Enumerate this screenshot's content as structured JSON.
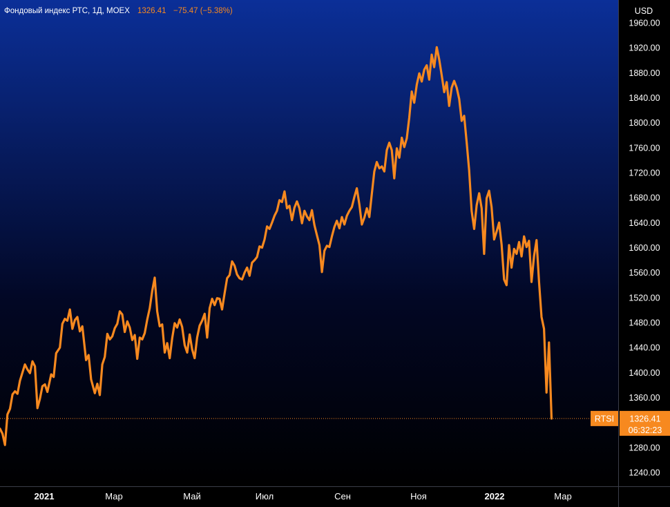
{
  "header": {
    "title": "Фондовый индекс РТС, 1Д, MOEX",
    "last": "1326.41",
    "change": "−75.47 (−5.38%)"
  },
  "currency": "USD",
  "last_price_label": {
    "symbol": "RTSI",
    "price": "1326.41",
    "timer": "06:32:23"
  },
  "colors": {
    "line": "#f7891f",
    "bg_top": "#0b2f98",
    "bg_bottom": "#000000",
    "axis_text": "#ffffff"
  },
  "chart_data": {
    "type": "line",
    "y_ticks": [
      "1960.00",
      "1920.00",
      "1880.00",
      "1840.00",
      "1800.00",
      "1760.00",
      "1720.00",
      "1680.00",
      "1640.00",
      "1600.00",
      "1560.00",
      "1520.00",
      "1480.00",
      "1440.00",
      "1400.00",
      "1360.00",
      "1280.00",
      "1240.00"
    ],
    "x_ticks": [
      {
        "label": "2021",
        "bold": true
      },
      {
        "label": "Мар",
        "bold": false
      },
      {
        "label": "Май",
        "bold": false
      },
      {
        "label": "Июл",
        "bold": false
      },
      {
        "label": "Сен",
        "bold": false
      },
      {
        "label": "Ноя",
        "bold": false
      },
      {
        "label": "2022",
        "bold": true
      },
      {
        "label": "Мар",
        "bold": false
      }
    ],
    "ylim": [
      1222,
      1982
    ],
    "xlim": [
      "2020-12-15",
      "2022-04-25"
    ],
    "series": [
      {
        "values": [
          [
            "2020-12-15",
            1310
          ],
          [
            "2020-12-17",
            1302
          ],
          [
            "2020-12-19",
            1284
          ],
          [
            "2020-12-21",
            1333
          ],
          [
            "2020-12-23",
            1342
          ],
          [
            "2020-12-25",
            1365
          ],
          [
            "2020-12-27",
            1370
          ],
          [
            "2020-12-29",
            1366
          ],
          [
            "2020-12-31",
            1387
          ],
          [
            "2021-01-04",
            1413
          ],
          [
            "2021-01-06",
            1405
          ],
          [
            "2021-01-08",
            1399
          ],
          [
            "2021-01-10",
            1418
          ],
          [
            "2021-01-12",
            1410
          ],
          [
            "2021-01-14",
            1343
          ],
          [
            "2021-01-16",
            1358
          ],
          [
            "2021-01-18",
            1378
          ],
          [
            "2021-01-20",
            1381
          ],
          [
            "2021-01-22",
            1369
          ],
          [
            "2021-01-25",
            1397
          ],
          [
            "2021-01-27",
            1393
          ],
          [
            "2021-01-29",
            1431
          ],
          [
            "2021-02-01",
            1440
          ],
          [
            "2021-02-03",
            1478
          ],
          [
            "2021-02-05",
            1486
          ],
          [
            "2021-02-07",
            1483
          ],
          [
            "2021-02-09",
            1501
          ],
          [
            "2021-02-11",
            1470
          ],
          [
            "2021-02-13",
            1484
          ],
          [
            "2021-02-15",
            1489
          ],
          [
            "2021-02-17",
            1466
          ],
          [
            "2021-02-19",
            1474
          ],
          [
            "2021-02-22",
            1420
          ],
          [
            "2021-02-24",
            1428
          ],
          [
            "2021-02-26",
            1389
          ],
          [
            "2021-03-01",
            1367
          ],
          [
            "2021-03-03",
            1382
          ],
          [
            "2021-03-05",
            1364
          ],
          [
            "2021-03-07",
            1413
          ],
          [
            "2021-03-09",
            1425
          ],
          [
            "2021-03-11",
            1462
          ],
          [
            "2021-03-13",
            1453
          ],
          [
            "2021-03-15",
            1458
          ],
          [
            "2021-03-17",
            1471
          ],
          [
            "2021-03-19",
            1478
          ],
          [
            "2021-03-21",
            1498
          ],
          [
            "2021-03-23",
            1493
          ],
          [
            "2021-03-25",
            1465
          ],
          [
            "2021-03-27",
            1482
          ],
          [
            "2021-03-29",
            1472
          ],
          [
            "2021-03-31",
            1452
          ],
          [
            "2021-04-02",
            1460
          ],
          [
            "2021-04-04",
            1422
          ],
          [
            "2021-04-06",
            1456
          ],
          [
            "2021-04-08",
            1453
          ],
          [
            "2021-04-10",
            1463
          ],
          [
            "2021-04-12",
            1485
          ],
          [
            "2021-04-14",
            1503
          ],
          [
            "2021-04-16",
            1531
          ],
          [
            "2021-04-18",
            1552
          ],
          [
            "2021-04-20",
            1498
          ],
          [
            "2021-04-22",
            1474
          ],
          [
            "2021-04-24",
            1477
          ],
          [
            "2021-04-26",
            1432
          ],
          [
            "2021-04-28",
            1447
          ],
          [
            "2021-04-30",
            1423
          ],
          [
            "2021-05-02",
            1455
          ],
          [
            "2021-05-04",
            1479
          ],
          [
            "2021-05-06",
            1472
          ],
          [
            "2021-05-08",
            1485
          ],
          [
            "2021-05-10",
            1473
          ],
          [
            "2021-05-12",
            1444
          ],
          [
            "2021-05-14",
            1432
          ],
          [
            "2021-05-16",
            1461
          ],
          [
            "2021-05-18",
            1437
          ],
          [
            "2021-05-20",
            1423
          ],
          [
            "2021-05-22",
            1456
          ],
          [
            "2021-05-24",
            1475
          ],
          [
            "2021-05-26",
            1483
          ],
          [
            "2021-05-28",
            1494
          ],
          [
            "2021-05-30",
            1456
          ],
          [
            "2021-06-01",
            1503
          ],
          [
            "2021-06-03",
            1518
          ],
          [
            "2021-06-05",
            1508
          ],
          [
            "2021-06-07",
            1519
          ],
          [
            "2021-06-09",
            1518
          ],
          [
            "2021-06-11",
            1501
          ],
          [
            "2021-06-13",
            1527
          ],
          [
            "2021-06-15",
            1551
          ],
          [
            "2021-06-17",
            1556
          ],
          [
            "2021-06-19",
            1578
          ],
          [
            "2021-06-21",
            1571
          ],
          [
            "2021-06-23",
            1557
          ],
          [
            "2021-06-25",
            1551
          ],
          [
            "2021-06-27",
            1549
          ],
          [
            "2021-06-29",
            1560
          ],
          [
            "2021-07-01",
            1568
          ],
          [
            "2021-07-03",
            1555
          ],
          [
            "2021-07-05",
            1576
          ],
          [
            "2021-07-07",
            1580
          ],
          [
            "2021-07-09",
            1585
          ],
          [
            "2021-07-11",
            1602
          ],
          [
            "2021-07-13",
            1600
          ],
          [
            "2021-07-15",
            1613
          ],
          [
            "2021-07-17",
            1634
          ],
          [
            "2021-07-19",
            1630
          ],
          [
            "2021-07-21",
            1640
          ],
          [
            "2021-07-23",
            1651
          ],
          [
            "2021-07-25",
            1659
          ],
          [
            "2021-07-27",
            1676
          ],
          [
            "2021-07-29",
            1673
          ],
          [
            "2021-07-31",
            1690
          ],
          [
            "2021-08-02",
            1663
          ],
          [
            "2021-08-04",
            1667
          ],
          [
            "2021-08-06",
            1644
          ],
          [
            "2021-08-08",
            1664
          ],
          [
            "2021-08-10",
            1674
          ],
          [
            "2021-08-12",
            1663
          ],
          [
            "2021-08-14",
            1639
          ],
          [
            "2021-08-16",
            1659
          ],
          [
            "2021-08-18",
            1650
          ],
          [
            "2021-08-20",
            1644
          ],
          [
            "2021-08-22",
            1660
          ],
          [
            "2021-08-24",
            1636
          ],
          [
            "2021-08-26",
            1620
          ],
          [
            "2021-08-28",
            1604
          ],
          [
            "2021-08-30",
            1561
          ],
          [
            "2021-09-01",
            1595
          ],
          [
            "2021-09-03",
            1603
          ],
          [
            "2021-09-05",
            1601
          ],
          [
            "2021-09-07",
            1618
          ],
          [
            "2021-09-09",
            1633
          ],
          [
            "2021-09-11",
            1643
          ],
          [
            "2021-09-13",
            1631
          ],
          [
            "2021-09-15",
            1649
          ],
          [
            "2021-09-17",
            1637
          ],
          [
            "2021-09-19",
            1651
          ],
          [
            "2021-09-21",
            1659
          ],
          [
            "2021-09-23",
            1665
          ],
          [
            "2021-09-25",
            1681
          ],
          [
            "2021-09-27",
            1695
          ],
          [
            "2021-09-29",
            1669
          ],
          [
            "2021-10-01",
            1637
          ],
          [
            "2021-10-03",
            1648
          ],
          [
            "2021-10-05",
            1663
          ],
          [
            "2021-10-07",
            1649
          ],
          [
            "2021-10-09",
            1686
          ],
          [
            "2021-10-11",
            1722
          ],
          [
            "2021-10-13",
            1737
          ],
          [
            "2021-10-15",
            1727
          ],
          [
            "2021-10-17",
            1730
          ],
          [
            "2021-10-19",
            1722
          ],
          [
            "2021-10-21",
            1756
          ],
          [
            "2021-10-23",
            1768
          ],
          [
            "2021-10-25",
            1756
          ],
          [
            "2021-10-27",
            1711
          ],
          [
            "2021-10-29",
            1759
          ],
          [
            "2021-10-31",
            1744
          ],
          [
            "2021-11-02",
            1776
          ],
          [
            "2021-11-04",
            1761
          ],
          [
            "2021-11-06",
            1775
          ],
          [
            "2021-11-08",
            1808
          ],
          [
            "2021-11-10",
            1850
          ],
          [
            "2021-11-12",
            1832
          ],
          [
            "2021-11-14",
            1861
          ],
          [
            "2021-11-16",
            1879
          ],
          [
            "2021-11-18",
            1866
          ],
          [
            "2021-11-20",
            1885
          ],
          [
            "2021-11-22",
            1892
          ],
          [
            "2021-11-24",
            1869
          ],
          [
            "2021-11-26",
            1909
          ],
          [
            "2021-11-28",
            1889
          ],
          [
            "2021-11-30",
            1921
          ],
          [
            "2021-12-02",
            1901
          ],
          [
            "2021-12-04",
            1876
          ],
          [
            "2021-12-06",
            1849
          ],
          [
            "2021-12-08",
            1865
          ],
          [
            "2021-12-10",
            1827
          ],
          [
            "2021-12-12",
            1856
          ],
          [
            "2021-12-14",
            1867
          ],
          [
            "2021-12-16",
            1856
          ],
          [
            "2021-12-18",
            1838
          ],
          [
            "2021-12-20",
            1803
          ],
          [
            "2021-12-22",
            1811
          ],
          [
            "2021-12-24",
            1769
          ],
          [
            "2021-12-26",
            1724
          ],
          [
            "2021-12-28",
            1659
          ],
          [
            "2021-12-30",
            1630
          ],
          [
            "2022-01-01",
            1668
          ],
          [
            "2022-01-03",
            1687
          ],
          [
            "2022-01-05",
            1663
          ],
          [
            "2022-01-07",
            1590
          ],
          [
            "2022-01-09",
            1679
          ],
          [
            "2022-01-11",
            1691
          ],
          [
            "2022-01-13",
            1665
          ],
          [
            "2022-01-15",
            1613
          ],
          [
            "2022-01-17",
            1626
          ],
          [
            "2022-01-19",
            1640
          ],
          [
            "2022-01-21",
            1605
          ],
          [
            "2022-01-23",
            1549
          ],
          [
            "2022-01-25",
            1540
          ],
          [
            "2022-01-27",
            1604
          ],
          [
            "2022-01-29",
            1568
          ],
          [
            "2022-01-31",
            1598
          ],
          [
            "2022-02-02",
            1590
          ],
          [
            "2022-02-04",
            1609
          ],
          [
            "2022-02-06",
            1586
          ],
          [
            "2022-02-08",
            1618
          ],
          [
            "2022-02-10",
            1601
          ],
          [
            "2022-02-12",
            1611
          ],
          [
            "2022-02-14",
            1545
          ],
          [
            "2022-02-16",
            1587
          ],
          [
            "2022-02-18",
            1612
          ],
          [
            "2022-02-20",
            1545
          ],
          [
            "2022-02-22",
            1489
          ],
          [
            "2022-02-24",
            1470
          ],
          [
            "2022-02-26",
            1368
          ],
          [
            "2022-02-28",
            1448
          ],
          [
            "2022-03-02",
            1326.41
          ]
        ]
      }
    ]
  }
}
